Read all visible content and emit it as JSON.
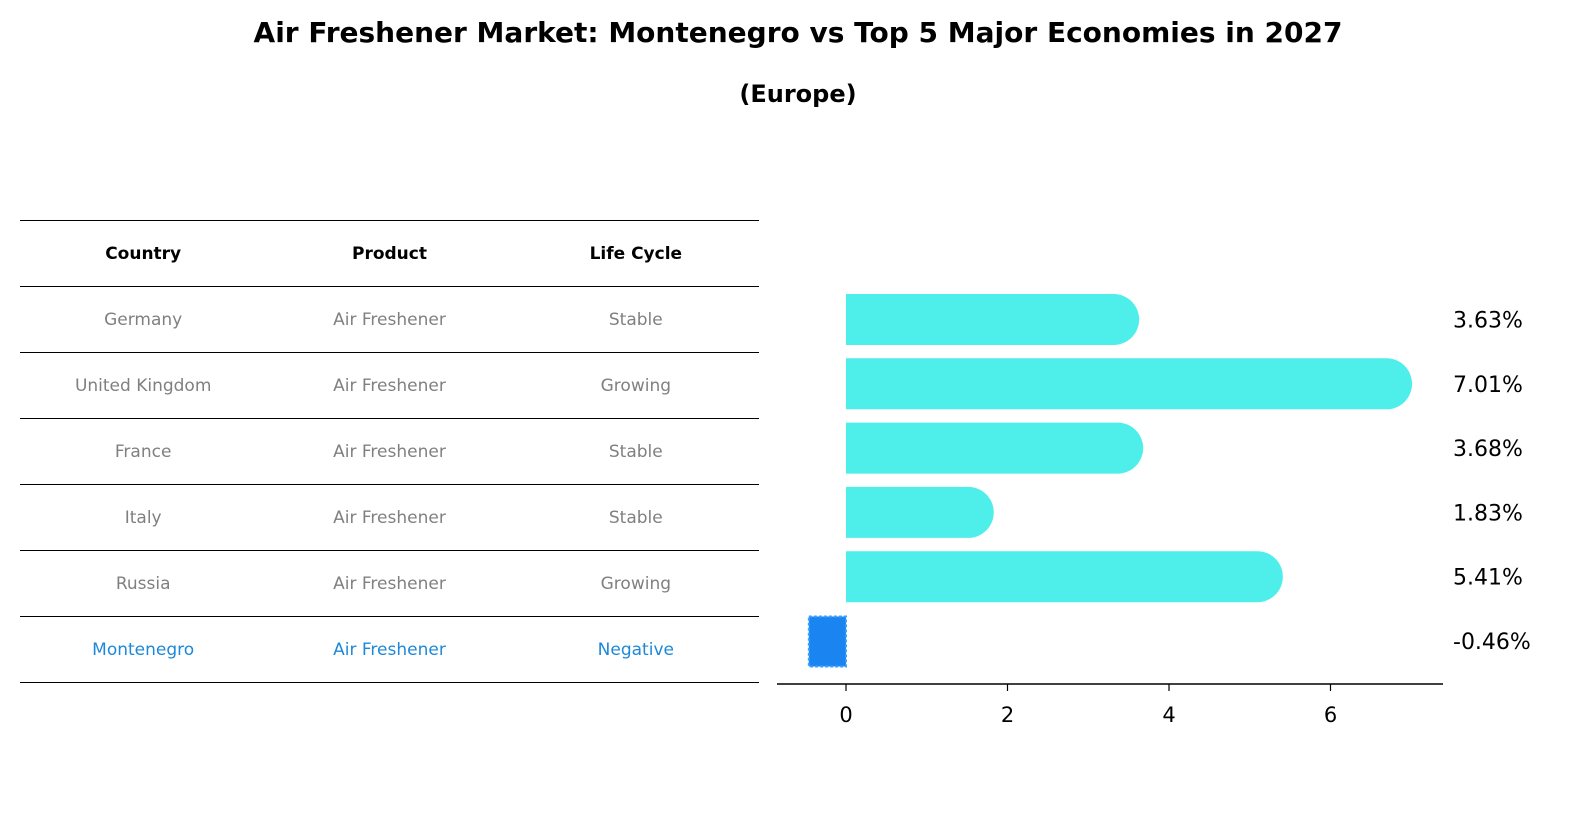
{
  "title": "Air Freshener Market: Montenegro vs Top 5 Major Economies in 2027",
  "subtitle": "(Europe)",
  "table": {
    "headers": [
      "Country",
      "Product",
      "Life Cycle"
    ],
    "rows": [
      {
        "country": "Germany",
        "product": "Air Freshener",
        "life_cycle": "Stable"
      },
      {
        "country": "United Kingdom",
        "product": "Air Freshener",
        "life_cycle": "Growing"
      },
      {
        "country": "France",
        "product": "Air Freshener",
        "life_cycle": "Stable"
      },
      {
        "country": "Italy",
        "product": "Air Freshener",
        "life_cycle": "Stable"
      },
      {
        "country": "Russia",
        "product": "Air Freshener",
        "life_cycle": "Growing"
      },
      {
        "country": "Montenegro",
        "product": "Air Freshener",
        "life_cycle": "Negative"
      }
    ]
  },
  "colors": {
    "bar": "#4ded eb",
    "highlight_bar": "#1a85f0",
    "highlight_text": "#1e88d8",
    "muted_text": "#808080"
  },
  "chart_data": {
    "type": "bar",
    "orientation": "horizontal",
    "categories": [
      "Germany",
      "United Kingdom",
      "France",
      "Italy",
      "Russia",
      "Montenegro"
    ],
    "values": [
      3.63,
      7.01,
      3.68,
      1.83,
      5.41,
      -0.46
    ],
    "value_labels": [
      "3.63%",
      "7.01%",
      "3.68%",
      "1.83%",
      "5.41%",
      "-0.46%"
    ],
    "xlim": [
      -0.85,
      7.4
    ],
    "xticks": [
      0,
      2,
      4,
      6
    ],
    "highlight_category": "Montenegro",
    "grid": false
  }
}
